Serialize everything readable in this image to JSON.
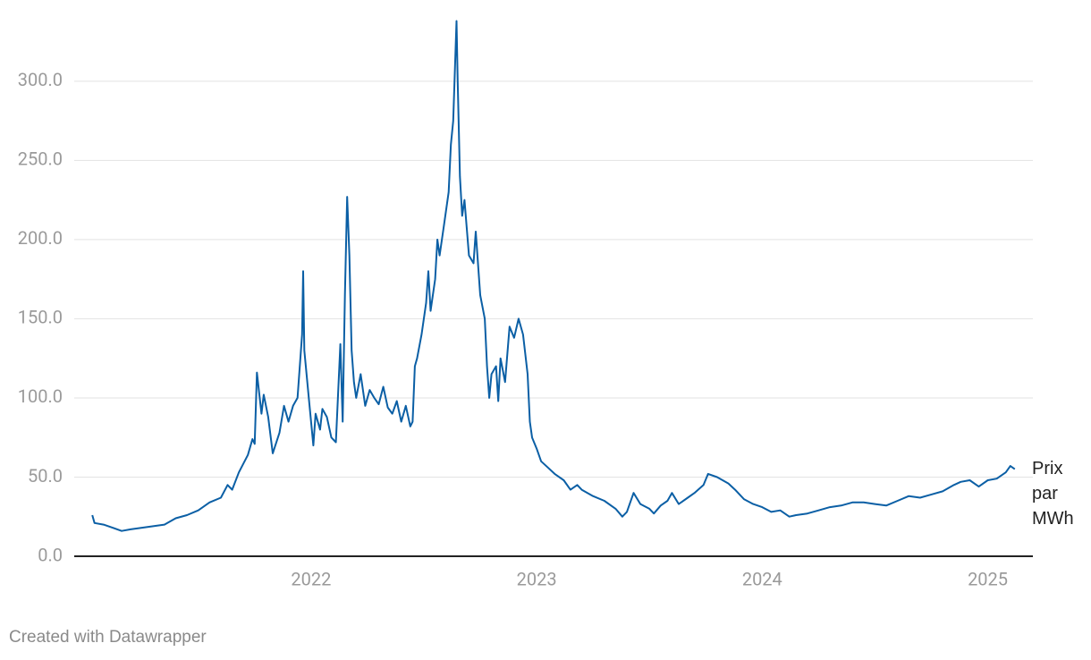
{
  "chart_data": {
    "type": "line",
    "x": [
      2021.03,
      2021.04,
      2021.08,
      2021.12,
      2021.16,
      2021.2,
      2021.25,
      2021.3,
      2021.35,
      2021.4,
      2021.45,
      2021.5,
      2021.55,
      2021.6,
      2021.63,
      2021.65,
      2021.68,
      2021.72,
      2021.74,
      2021.75,
      2021.76,
      2021.78,
      2021.79,
      2021.81,
      2021.83,
      2021.86,
      2021.88,
      2021.9,
      2021.92,
      2021.94,
      2021.96,
      2021.965,
      2021.97,
      2021.99,
      2022.01,
      2022.02,
      2022.04,
      2022.05,
      2022.07,
      2022.09,
      2022.11,
      2022.13,
      2022.14,
      2022.15,
      2022.16,
      2022.17,
      2022.18,
      2022.19,
      2022.2,
      2022.22,
      2022.24,
      2022.26,
      2022.28,
      2022.3,
      2022.32,
      2022.34,
      2022.36,
      2022.38,
      2022.4,
      2022.42,
      2022.44,
      2022.45,
      2022.46,
      2022.47,
      2022.49,
      2022.51,
      2022.52,
      2022.53,
      2022.55,
      2022.56,
      2022.57,
      2022.59,
      2022.61,
      2022.62,
      2022.63,
      2022.645,
      2022.65,
      2022.66,
      2022.67,
      2022.68,
      2022.7,
      2022.72,
      2022.73,
      2022.75,
      2022.77,
      2022.78,
      2022.79,
      2022.8,
      2022.82,
      2022.83,
      2022.84,
      2022.86,
      2022.88,
      2022.9,
      2022.92,
      2022.94,
      2022.96,
      2022.97,
      2022.98,
      2023.0,
      2023.02,
      2023.05,
      2023.08,
      2023.12,
      2023.15,
      2023.18,
      2023.2,
      2023.25,
      2023.3,
      2023.35,
      2023.38,
      2023.4,
      2023.43,
      2023.46,
      2023.5,
      2023.52,
      2023.55,
      2023.58,
      2023.6,
      2023.63,
      2023.67,
      2023.7,
      2023.74,
      2023.76,
      2023.8,
      2023.85,
      2023.88,
      2023.92,
      2023.96,
      2024.0,
      2024.04,
      2024.08,
      2024.12,
      2024.15,
      2024.2,
      2024.25,
      2024.3,
      2024.35,
      2024.4,
      2024.45,
      2024.5,
      2024.55,
      2024.6,
      2024.65,
      2024.7,
      2024.75,
      2024.8,
      2024.85,
      2024.88,
      2024.92,
      2024.96,
      2025.0,
      2025.04,
      2025.08,
      2025.1,
      2025.12
    ],
    "series": [
      {
        "name": "Prix par MWh",
        "color": "#0b5fa5",
        "values": [
          26,
          21,
          20,
          18,
          16,
          17,
          18,
          19,
          20,
          24,
          26,
          29,
          34,
          37,
          45,
          42,
          53,
          64,
          74,
          71,
          116,
          90,
          102,
          88,
          65,
          78,
          95,
          85,
          95,
          100,
          140,
          180,
          130,
          100,
          70,
          90,
          80,
          93,
          88,
          75,
          72,
          134,
          85,
          165,
          227,
          190,
          130,
          110,
          100,
          115,
          95,
          105,
          100,
          96,
          107,
          94,
          90,
          98,
          85,
          95,
          82,
          85,
          120,
          125,
          140,
          160,
          180,
          155,
          175,
          200,
          190,
          210,
          230,
          260,
          275,
          338,
          300,
          240,
          215,
          225,
          190,
          185,
          205,
          165,
          150,
          120,
          100,
          115,
          120,
          98,
          125,
          110,
          145,
          138,
          150,
          140,
          115,
          85,
          75,
          68,
          60,
          56,
          52,
          48,
          42,
          45,
          42,
          38,
          35,
          30,
          25,
          28,
          40,
          33,
          30,
          27,
          32,
          35,
          40,
          33,
          37,
          40,
          45,
          52,
          50,
          46,
          42,
          36,
          33,
          31,
          28,
          29,
          25,
          26,
          27,
          29,
          31,
          32,
          34,
          34,
          33,
          32,
          35,
          38,
          37,
          39,
          41,
          45,
          47,
          48,
          44,
          48,
          49,
          53,
          57,
          55
        ]
      }
    ],
    "xlim": [
      2020.95,
      2025.2
    ],
    "xticks": [
      2022,
      2023,
      2024,
      2025
    ],
    "ylim": [
      0,
      340
    ],
    "yticks": [
      {
        "value": 0,
        "label": "0.0"
      },
      {
        "value": 50,
        "label": "50.0"
      },
      {
        "value": 100,
        "label": "100.0"
      },
      {
        "value": 150,
        "label": "150.0"
      },
      {
        "value": 200,
        "label": "200.0"
      },
      {
        "value": 250,
        "label": "250.0"
      },
      {
        "value": 300,
        "label": "300.0"
      }
    ],
    "grid": true,
    "footer": "Created with Datawrapper"
  }
}
